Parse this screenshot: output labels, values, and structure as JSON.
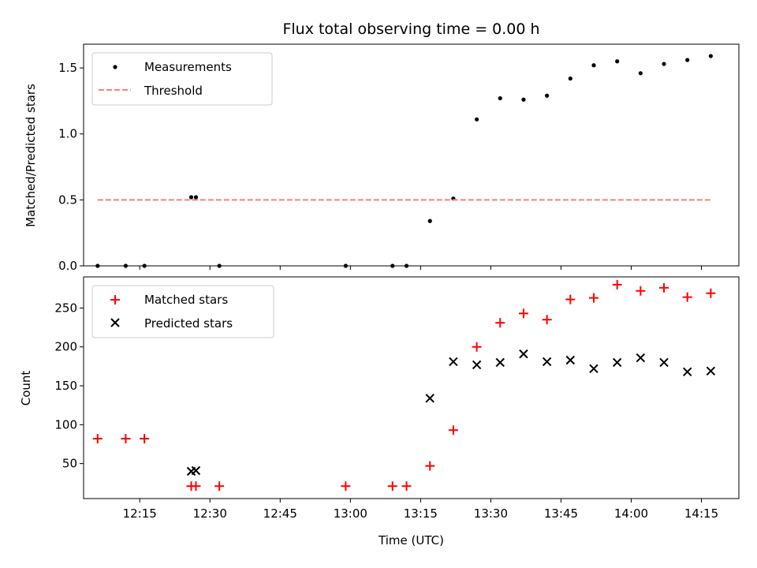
{
  "chart_data": [
    {
      "type": "scatter",
      "title": "Flux total observing time = 0.00 h",
      "xlabel": "",
      "ylabel": "Matched/Predicted stars",
      "xlim": [
        "12:03",
        "14:23"
      ],
      "ylim": [
        0,
        1.68
      ],
      "yticks": [
        0.0,
        0.5,
        1.0,
        1.5
      ],
      "ytick_labels": [
        "0.0",
        "0.5",
        "1.0",
        "1.5"
      ],
      "legend": {
        "placement": "top-left",
        "entries": [
          "Measurements",
          "Threshold"
        ]
      },
      "colors": {
        "measurements": "#000000",
        "threshold": "#ff7f7f"
      },
      "series": [
        {
          "name": "Measurements",
          "marker": "dot",
          "points": [
            [
              "12:06",
              0.0
            ],
            [
              "12:12",
              0.0
            ],
            [
              "12:16",
              0.0
            ],
            [
              "12:26",
              0.52
            ],
            [
              "12:27",
              0.52
            ],
            [
              "12:32",
              0.0
            ],
            [
              "12:59",
              0.0
            ],
            [
              "13:09",
              0.0
            ],
            [
              "13:12",
              0.0
            ],
            [
              "13:17",
              0.34
            ],
            [
              "13:22",
              0.51
            ],
            [
              "13:27",
              1.11
            ],
            [
              "13:32",
              1.27
            ],
            [
              "13:37",
              1.26
            ],
            [
              "13:42",
              1.29
            ],
            [
              "13:47",
              1.42
            ],
            [
              "13:52",
              1.52
            ],
            [
              "13:57",
              1.55
            ],
            [
              "14:02",
              1.46
            ],
            [
              "14:07",
              1.53
            ],
            [
              "14:12",
              1.56
            ],
            [
              "14:17",
              1.59
            ]
          ]
        },
        {
          "name": "Threshold",
          "marker": "dashed-line",
          "points": [
            [
              "12:06",
              0.5
            ],
            [
              "14:17",
              0.5
            ]
          ]
        }
      ]
    },
    {
      "type": "scatter",
      "title": "",
      "xlabel": "Time (UTC)",
      "ylabel": "Count",
      "xlim": [
        "12:03",
        "14:23"
      ],
      "ylim": [
        5,
        290
      ],
      "xticks": [
        "12:15",
        "12:30",
        "12:45",
        "13:00",
        "13:15",
        "13:30",
        "13:45",
        "14:00",
        "14:15"
      ],
      "yticks": [
        50,
        100,
        150,
        200,
        250
      ],
      "legend": {
        "placement": "top-left",
        "entries": [
          "Matched stars",
          "Predicted stars"
        ]
      },
      "colors": {
        "matched": "#ff0000",
        "predicted": "#000000"
      },
      "series": [
        {
          "name": "Matched stars",
          "marker": "plus",
          "points": [
            [
              "12:06",
              82
            ],
            [
              "12:12",
              82
            ],
            [
              "12:16",
              82
            ],
            [
              "12:26",
              21
            ],
            [
              "12:27",
              21
            ],
            [
              "12:32",
              21
            ],
            [
              "12:59",
              21
            ],
            [
              "13:09",
              21
            ],
            [
              "13:12",
              21
            ],
            [
              "13:17",
              47
            ],
            [
              "13:22",
              93
            ],
            [
              "13:27",
              200
            ],
            [
              "13:32",
              231
            ],
            [
              "13:37",
              243
            ],
            [
              "13:42",
              235
            ],
            [
              "13:47",
              261
            ],
            [
              "13:52",
              263
            ],
            [
              "13:57",
              280
            ],
            [
              "14:02",
              272
            ],
            [
              "14:07",
              276
            ],
            [
              "14:12",
              264
            ],
            [
              "14:17",
              269
            ]
          ]
        },
        {
          "name": "Predicted stars",
          "marker": "x",
          "points": [
            [
              "12:26",
              40
            ],
            [
              "12:27",
              41
            ],
            [
              "13:17",
              134
            ],
            [
              "13:22",
              181
            ],
            [
              "13:27",
              177
            ],
            [
              "13:32",
              180
            ],
            [
              "13:37",
              191
            ],
            [
              "13:42",
              181
            ],
            [
              "13:47",
              183
            ],
            [
              "13:52",
              172
            ],
            [
              "13:57",
              180
            ],
            [
              "14:02",
              186
            ],
            [
              "14:07",
              180
            ],
            [
              "14:12",
              168
            ],
            [
              "14:17",
              169
            ]
          ]
        }
      ]
    }
  ]
}
